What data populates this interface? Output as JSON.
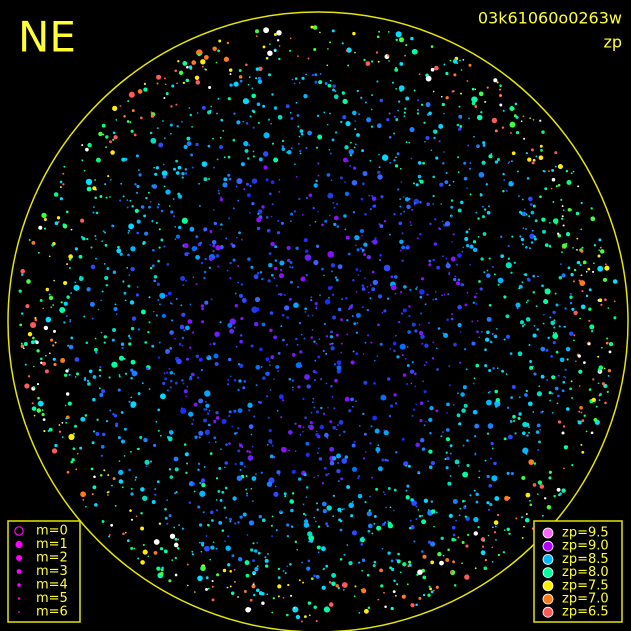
{
  "header": {
    "title": "NE",
    "id": "03k61060o0263w",
    "mode": "zp"
  },
  "magnitude_legend": {
    "color": "#ff00ff",
    "items": [
      "m=0",
      "m=1",
      "m=2",
      "m=3",
      "m=4",
      "m=5",
      "m=6"
    ]
  },
  "zp_legend": {
    "items": [
      {
        "label": "zp=9.5",
        "color": "#ff66ff"
      },
      {
        "label": "zp=9.0",
        "color": "#b000ff"
      },
      {
        "label": "zp=8.5",
        "color": "#00b8ff"
      },
      {
        "label": "zp=8.0",
        "color": "#00ffa0"
      },
      {
        "label": "zp=7.5",
        "color": "#ffee00"
      },
      {
        "label": "zp=7.0",
        "color": "#ff7a1a"
      },
      {
        "label": "zp=6.5",
        "color": "#ff5a5a"
      }
    ]
  }
}
